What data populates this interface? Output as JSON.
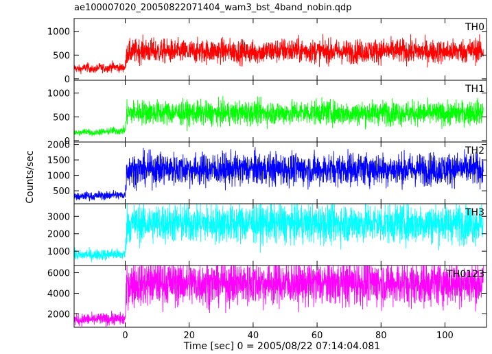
{
  "chart_data": {
    "type": "line",
    "title": "ae100007020_20050822071404_wam3_bst_4band_nobin.qdp",
    "xlabel": "Time [sec] 0 = 2005/08/22 07:14:04.081",
    "ylabel": "Counts/sec",
    "xlim": [
      -16,
      113
    ],
    "xticks": [
      0,
      20,
      40,
      60,
      80,
      100
    ],
    "xtick_labels": [
      "0",
      "20",
      "40",
      "60",
      "80",
      "100"
    ],
    "grid": false,
    "panels": [
      {
        "name": "TH0",
        "color": "#ff0000",
        "ylim": [
          -30,
          1270
        ],
        "yticks": [
          0,
          500,
          1000
        ],
        "ytick_labels": [
          "0",
          "500",
          "1000"
        ],
        "series": [
          {
            "x": [
              -16,
              -14,
              -12,
              -10,
              -8,
              -6,
              -4,
              -2,
              0,
              0.5,
              5,
              10,
              20,
              30,
              40,
              50,
              60,
              70,
              80,
              90,
              100,
              110,
              112
            ],
            "y": [
              230,
              200,
              250,
              190,
              240,
              220,
              260,
              230,
              240,
              550,
              600,
              580,
              570,
              590,
              560,
              600,
              580,
              570,
              590,
              580,
              570,
              600,
              580
            ]
          }
        ]
      },
      {
        "name": "TH1",
        "color": "#00ff00",
        "ylim": [
          -30,
          1270
        ],
        "yticks": [
          0,
          500,
          1000
        ],
        "ytick_labels": [
          "0",
          "500",
          "1000"
        ],
        "series": [
          {
            "x": [
              -16,
              -14,
              -12,
              -10,
              -8,
              -6,
              -4,
              -2,
              0,
              0.5,
              5,
              10,
              20,
              30,
              40,
              50,
              60,
              70,
              80,
              90,
              100,
              110,
              112
            ],
            "y": [
              170,
              160,
              200,
              150,
              190,
              180,
              210,
              200,
              220,
              580,
              600,
              590,
              580,
              570,
              590,
              580,
              600,
              570,
              590,
              580,
              560,
              600,
              590
            ]
          }
        ]
      },
      {
        "name": "TH2",
        "color": "#0000ff",
        "ylim": [
          80,
          2080
        ],
        "yticks": [
          500,
          1000,
          1500,
          2000
        ],
        "ytick_labels": [
          "500",
          "1000",
          "1500",
          "2000"
        ],
        "series": [
          {
            "x": [
              -16,
              -14,
              -12,
              -10,
              -8,
              -6,
              -4,
              -2,
              0,
              0.5,
              5,
              10,
              20,
              30,
              40,
              50,
              60,
              70,
              80,
              90,
              100,
              110,
              112
            ],
            "y": [
              320,
              300,
              350,
              310,
              360,
              330,
              380,
              350,
              370,
              1200,
              1180,
              1220,
              1200,
              1190,
              1210,
              1200,
              1180,
              1220,
              1200,
              1190,
              1210,
              1200,
              1190
            ]
          }
        ]
      },
      {
        "name": "TH3",
        "color": "#00ffff",
        "ylim": [
          180,
          3720
        ],
        "yticks": [
          1000,
          2000,
          3000
        ],
        "ytick_labels": [
          "1000",
          "2000",
          "3000"
        ],
        "series": [
          {
            "x": [
              -16,
              -14,
              -12,
              -10,
              -8,
              -6,
              -4,
              -2,
              0,
              0.5,
              5,
              10,
              20,
              30,
              40,
              50,
              60,
              70,
              80,
              90,
              100,
              110,
              112
            ],
            "y": [
              780,
              760,
              820,
              770,
              830,
              790,
              850,
              800,
              830,
              2600,
              2580,
              2620,
              2600,
              2590,
              2610,
              2600,
              2580,
              2620,
              2600,
              2590,
              2610,
              2600,
              2590
            ]
          }
        ]
      },
      {
        "name": "TH0123",
        "color": "#ff00ff",
        "ylim": [
          700,
          6700
        ],
        "yticks": [
          2000,
          4000,
          6000
        ],
        "ytick_labels": [
          "2000",
          "4000",
          "6000"
        ],
        "series": [
          {
            "x": [
              -16,
              -14,
              -12,
              -10,
              -8,
              -6,
              -4,
              -2,
              0,
              0.5,
              5,
              10,
              20,
              30,
              40,
              50,
              60,
              70,
              80,
              90,
              100,
              110,
              112
            ],
            "y": [
              1450,
              1400,
              1500,
              1420,
              1520,
              1460,
              1550,
              1480,
              1550,
              5000,
              4950,
              5050,
              5000,
              4980,
              5020,
              5000,
              4960,
              5040,
              5000,
              4980,
              5020,
              5000,
              4990
            ]
          }
        ]
      }
    ]
  }
}
